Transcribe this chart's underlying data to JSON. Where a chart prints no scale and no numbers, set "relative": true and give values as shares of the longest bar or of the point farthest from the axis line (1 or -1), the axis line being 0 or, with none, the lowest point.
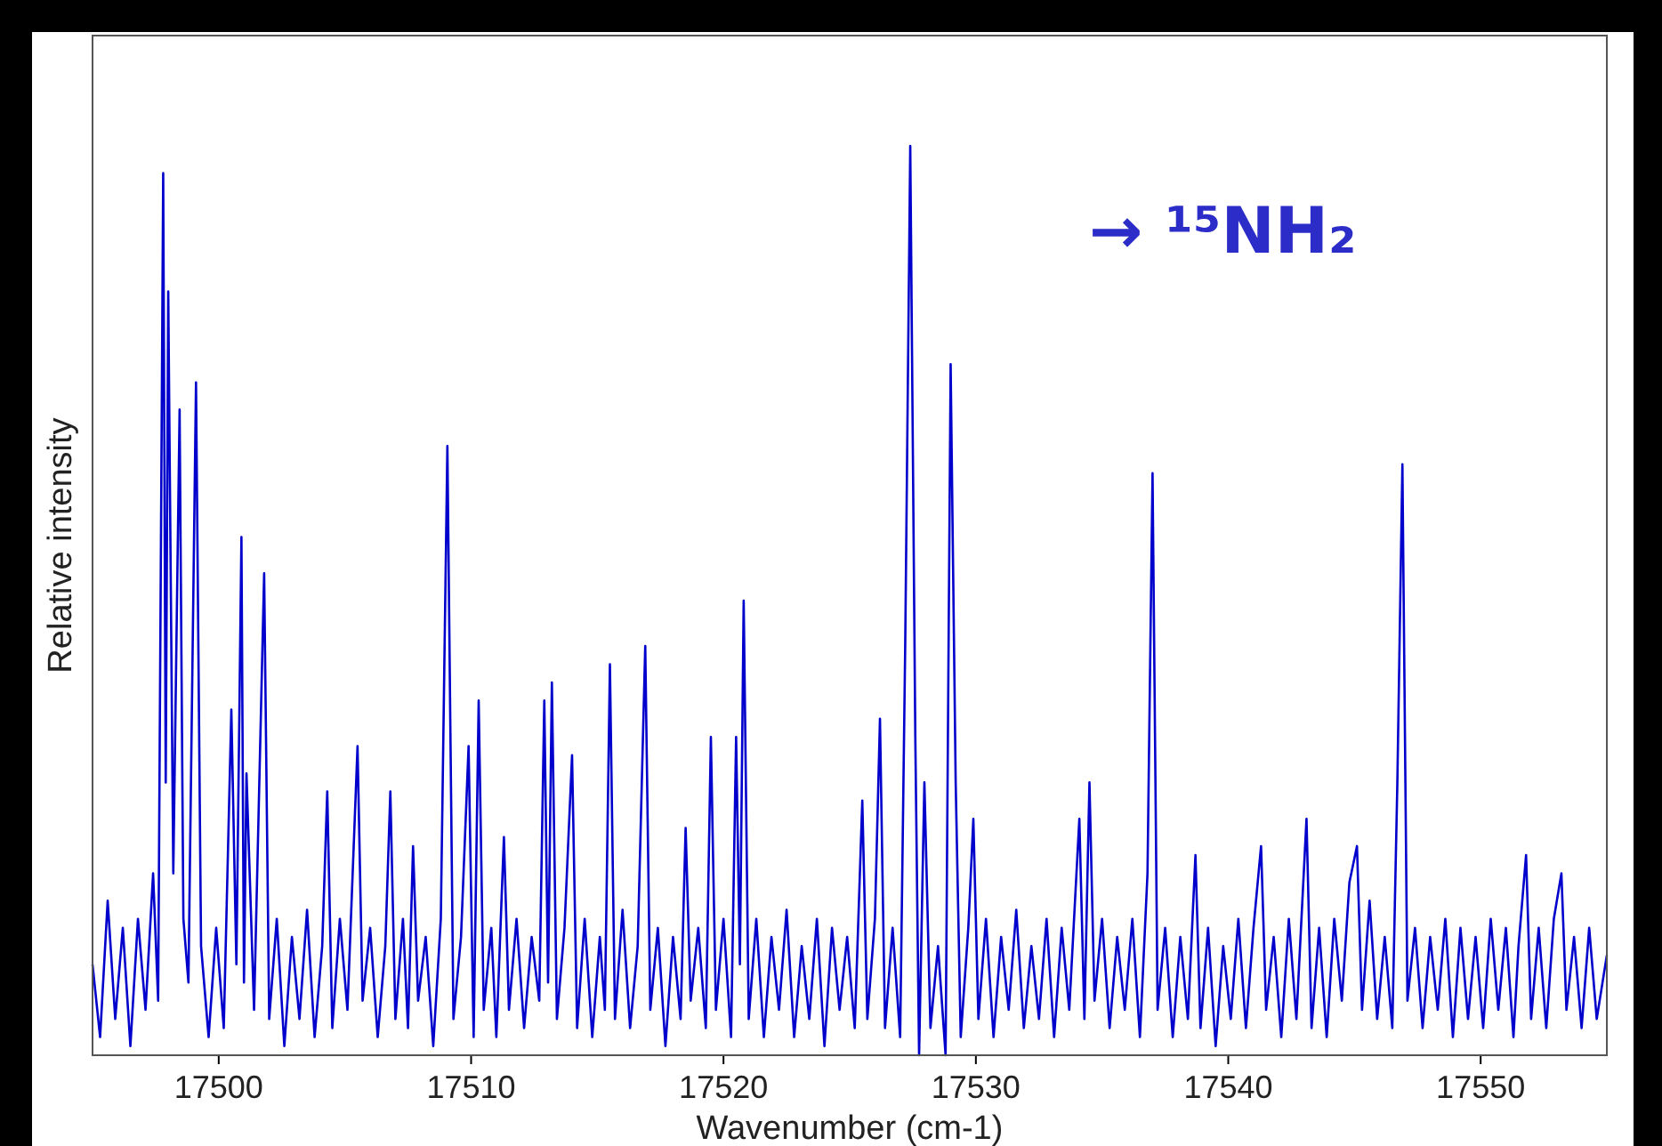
{
  "chart_data": {
    "type": "line",
    "xlabel": "Wavenumber (cm-1)",
    "ylabel": "Relative intensity",
    "relative": true,
    "annotations": [
      "→ ¹⁵NH₂"
    ],
    "xlim": [
      17495,
      17555
    ],
    "xticks": [
      17500,
      17510,
      17520,
      17530,
      17540,
      17550
    ],
    "grid": false,
    "marker": "none",
    "line_style": "solid",
    "series": [
      {
        "color": "#0000cc",
        "x": [
          17495.0,
          17495.3,
          17495.6,
          17495.9,
          17496.2,
          17496.5,
          17496.8,
          17497.1,
          17497.4,
          17497.6,
          17497.8,
          17497.9,
          17498.0,
          17498.2,
          17498.45,
          17498.6,
          17498.8,
          17499.1,
          17499.3,
          17499.6,
          17499.9,
          17500.2,
          17500.5,
          17500.7,
          17500.9,
          17501.0,
          17501.1,
          17501.4,
          17501.8,
          17502.0,
          17502.3,
          17502.6,
          17502.9,
          17503.2,
          17503.5,
          17503.8,
          17504.1,
          17504.3,
          17504.5,
          17504.8,
          17505.1,
          17505.5,
          17505.7,
          17506.0,
          17506.3,
          17506.6,
          17506.8,
          17507.0,
          17507.3,
          17507.5,
          17507.7,
          17507.9,
          17508.2,
          17508.5,
          17508.8,
          17509.06,
          17509.3,
          17509.6,
          17509.9,
          17510.1,
          17510.3,
          17510.5,
          17510.8,
          17511.0,
          17511.3,
          17511.5,
          17511.8,
          17512.1,
          17512.4,
          17512.7,
          17512.9,
          17513.05,
          17513.2,
          17513.4,
          17513.7,
          17514.0,
          17514.2,
          17514.5,
          17514.8,
          17515.1,
          17515.3,
          17515.5,
          17515.7,
          17516.0,
          17516.3,
          17516.6,
          17516.9,
          17517.1,
          17517.4,
          17517.7,
          17518.0,
          17518.3,
          17518.5,
          17518.7,
          17519.0,
          17519.3,
          17519.5,
          17519.7,
          17520.0,
          17520.3,
          17520.5,
          17520.65,
          17520.8,
          17521.0,
          17521.3,
          17521.6,
          17521.9,
          17522.2,
          17522.5,
          17522.8,
          17523.1,
          17523.4,
          17523.7,
          17524.0,
          17524.3,
          17524.6,
          17524.9,
          17525.2,
          17525.5,
          17525.7,
          17526.0,
          17526.2,
          17526.4,
          17526.7,
          17527.0,
          17527.2,
          17527.4,
          17527.6,
          17527.75,
          17527.96,
          17528.2,
          17528.5,
          17528.8,
          17529.0,
          17529.2,
          17529.4,
          17529.7,
          17529.9,
          17530.1,
          17530.4,
          17530.7,
          17531.0,
          17531.3,
          17531.6,
          17531.9,
          17532.2,
          17532.5,
          17532.8,
          17533.1,
          17533.4,
          17533.7,
          17534.1,
          17534.3,
          17534.5,
          17534.7,
          17535.0,
          17535.3,
          17535.6,
          17535.9,
          17536.2,
          17536.5,
          17536.8,
          17537.0,
          17537.2,
          17537.5,
          17537.8,
          17538.1,
          17538.4,
          17538.7,
          17538.9,
          17539.2,
          17539.5,
          17539.8,
          17540.1,
          17540.4,
          17540.7,
          17541.0,
          17541.3,
          17541.5,
          17541.8,
          17542.1,
          17542.4,
          17542.7,
          17543.1,
          17543.3,
          17543.6,
          17543.9,
          17544.2,
          17544.5,
          17544.8,
          17545.1,
          17545.3,
          17545.6,
          17545.9,
          17546.2,
          17546.5,
          17546.7,
          17546.9,
          17547.1,
          17547.4,
          17547.7,
          17548.0,
          17548.3,
          17548.6,
          17548.9,
          17549.2,
          17549.5,
          17549.8,
          17550.1,
          17550.4,
          17550.7,
          17551.0,
          17551.3,
          17551.5,
          17551.8,
          17552.0,
          17552.3,
          17552.6,
          17552.9,
          17553.2,
          17553.4,
          17553.7,
          17554.0,
          17554.3,
          17554.6,
          17555.0
        ],
        "values": [
          0.1,
          0.02,
          0.17,
          0.04,
          0.14,
          0.01,
          0.15,
          0.05,
          0.2,
          0.06,
          0.97,
          0.3,
          0.84,
          0.2,
          0.71,
          0.15,
          0.08,
          0.74,
          0.12,
          0.02,
          0.14,
          0.03,
          0.38,
          0.1,
          0.57,
          0.08,
          0.31,
          0.05,
          0.53,
          0.04,
          0.15,
          0.01,
          0.13,
          0.04,
          0.16,
          0.02,
          0.12,
          0.29,
          0.03,
          0.15,
          0.05,
          0.34,
          0.06,
          0.14,
          0.02,
          0.12,
          0.29,
          0.04,
          0.15,
          0.03,
          0.23,
          0.06,
          0.13,
          0.01,
          0.15,
          0.67,
          0.04,
          0.13,
          0.34,
          0.02,
          0.39,
          0.05,
          0.14,
          0.02,
          0.24,
          0.05,
          0.15,
          0.03,
          0.13,
          0.06,
          0.39,
          0.08,
          0.41,
          0.04,
          0.14,
          0.33,
          0.03,
          0.15,
          0.02,
          0.13,
          0.05,
          0.43,
          0.04,
          0.16,
          0.03,
          0.12,
          0.45,
          0.05,
          0.14,
          0.01,
          0.13,
          0.04,
          0.25,
          0.06,
          0.14,
          0.03,
          0.35,
          0.05,
          0.15,
          0.02,
          0.35,
          0.1,
          0.5,
          0.04,
          0.15,
          0.02,
          0.13,
          0.05,
          0.16,
          0.02,
          0.12,
          0.04,
          0.15,
          0.01,
          0.14,
          0.05,
          0.13,
          0.03,
          0.28,
          0.04,
          0.15,
          0.37,
          0.03,
          0.14,
          0.02,
          0.45,
          1.0,
          0.35,
          0.0,
          0.3,
          0.03,
          0.12,
          0.0,
          0.76,
          0.3,
          0.02,
          0.14,
          0.26,
          0.04,
          0.15,
          0.02,
          0.13,
          0.05,
          0.16,
          0.03,
          0.12,
          0.04,
          0.15,
          0.02,
          0.14,
          0.05,
          0.26,
          0.04,
          0.3,
          0.06,
          0.15,
          0.03,
          0.13,
          0.05,
          0.15,
          0.02,
          0.2,
          0.64,
          0.05,
          0.14,
          0.02,
          0.13,
          0.04,
          0.22,
          0.03,
          0.14,
          0.01,
          0.12,
          0.04,
          0.15,
          0.03,
          0.14,
          0.23,
          0.05,
          0.13,
          0.02,
          0.15,
          0.04,
          0.26,
          0.03,
          0.14,
          0.02,
          0.15,
          0.06,
          0.19,
          0.23,
          0.05,
          0.17,
          0.04,
          0.13,
          0.03,
          0.3,
          0.65,
          0.06,
          0.14,
          0.03,
          0.13,
          0.05,
          0.15,
          0.02,
          0.14,
          0.04,
          0.13,
          0.03,
          0.15,
          0.05,
          0.14,
          0.02,
          0.12,
          0.22,
          0.04,
          0.14,
          0.03,
          0.15,
          0.2,
          0.05,
          0.13,
          0.03,
          0.14,
          0.04,
          0.11
        ]
      }
    ]
  }
}
